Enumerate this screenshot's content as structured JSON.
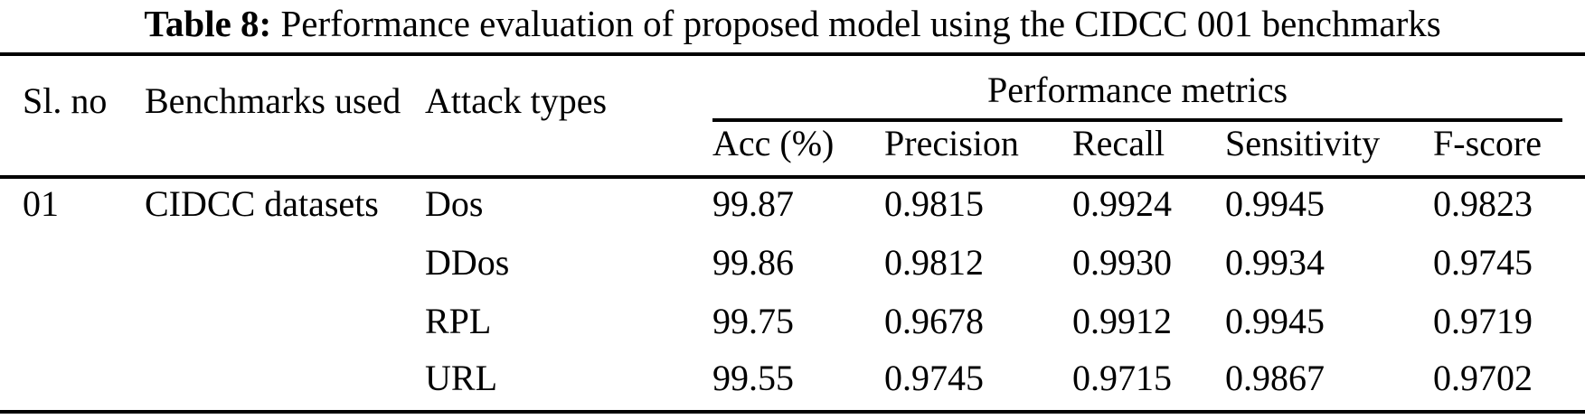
{
  "caption": {
    "label": "Table 8:",
    "text": "Performance evaluation of proposed model using the CIDCC 001 benchmarks"
  },
  "table": {
    "headers": {
      "sl_no": "Sl. no",
      "benchmarks": "Benchmarks used",
      "attack_types": "Attack types",
      "group": "Performance metrics",
      "metrics": [
        "Acc (%)",
        "Precision",
        "Recall",
        "Sensitivity",
        "F-score"
      ]
    },
    "rows": [
      {
        "sl_no": "01",
        "benchmark": "CIDCC datasets",
        "attack_type": "Dos",
        "acc": "99.87",
        "precision": "0.9815",
        "recall": "0.9924",
        "sensitivity": "0.9945",
        "f_score": "0.9823"
      },
      {
        "sl_no": "",
        "benchmark": "",
        "attack_type": "DDos",
        "acc": "99.86",
        "precision": "0.9812",
        "recall": "0.9930",
        "sensitivity": "0.9934",
        "f_score": "0.9745"
      },
      {
        "sl_no": "",
        "benchmark": "",
        "attack_type": "RPL",
        "acc": "99.75",
        "precision": "0.9678",
        "recall": "0.9912",
        "sensitivity": "0.9945",
        "f_score": "0.9719"
      },
      {
        "sl_no": "",
        "benchmark": "",
        "attack_type": "URL",
        "acc": "99.55",
        "precision": "0.9745",
        "recall": "0.9715",
        "sensitivity": "0.9867",
        "f_score": "0.9702"
      }
    ]
  },
  "colors": {
    "text": "#000000",
    "background": "#ffffff",
    "rule": "#000000"
  }
}
